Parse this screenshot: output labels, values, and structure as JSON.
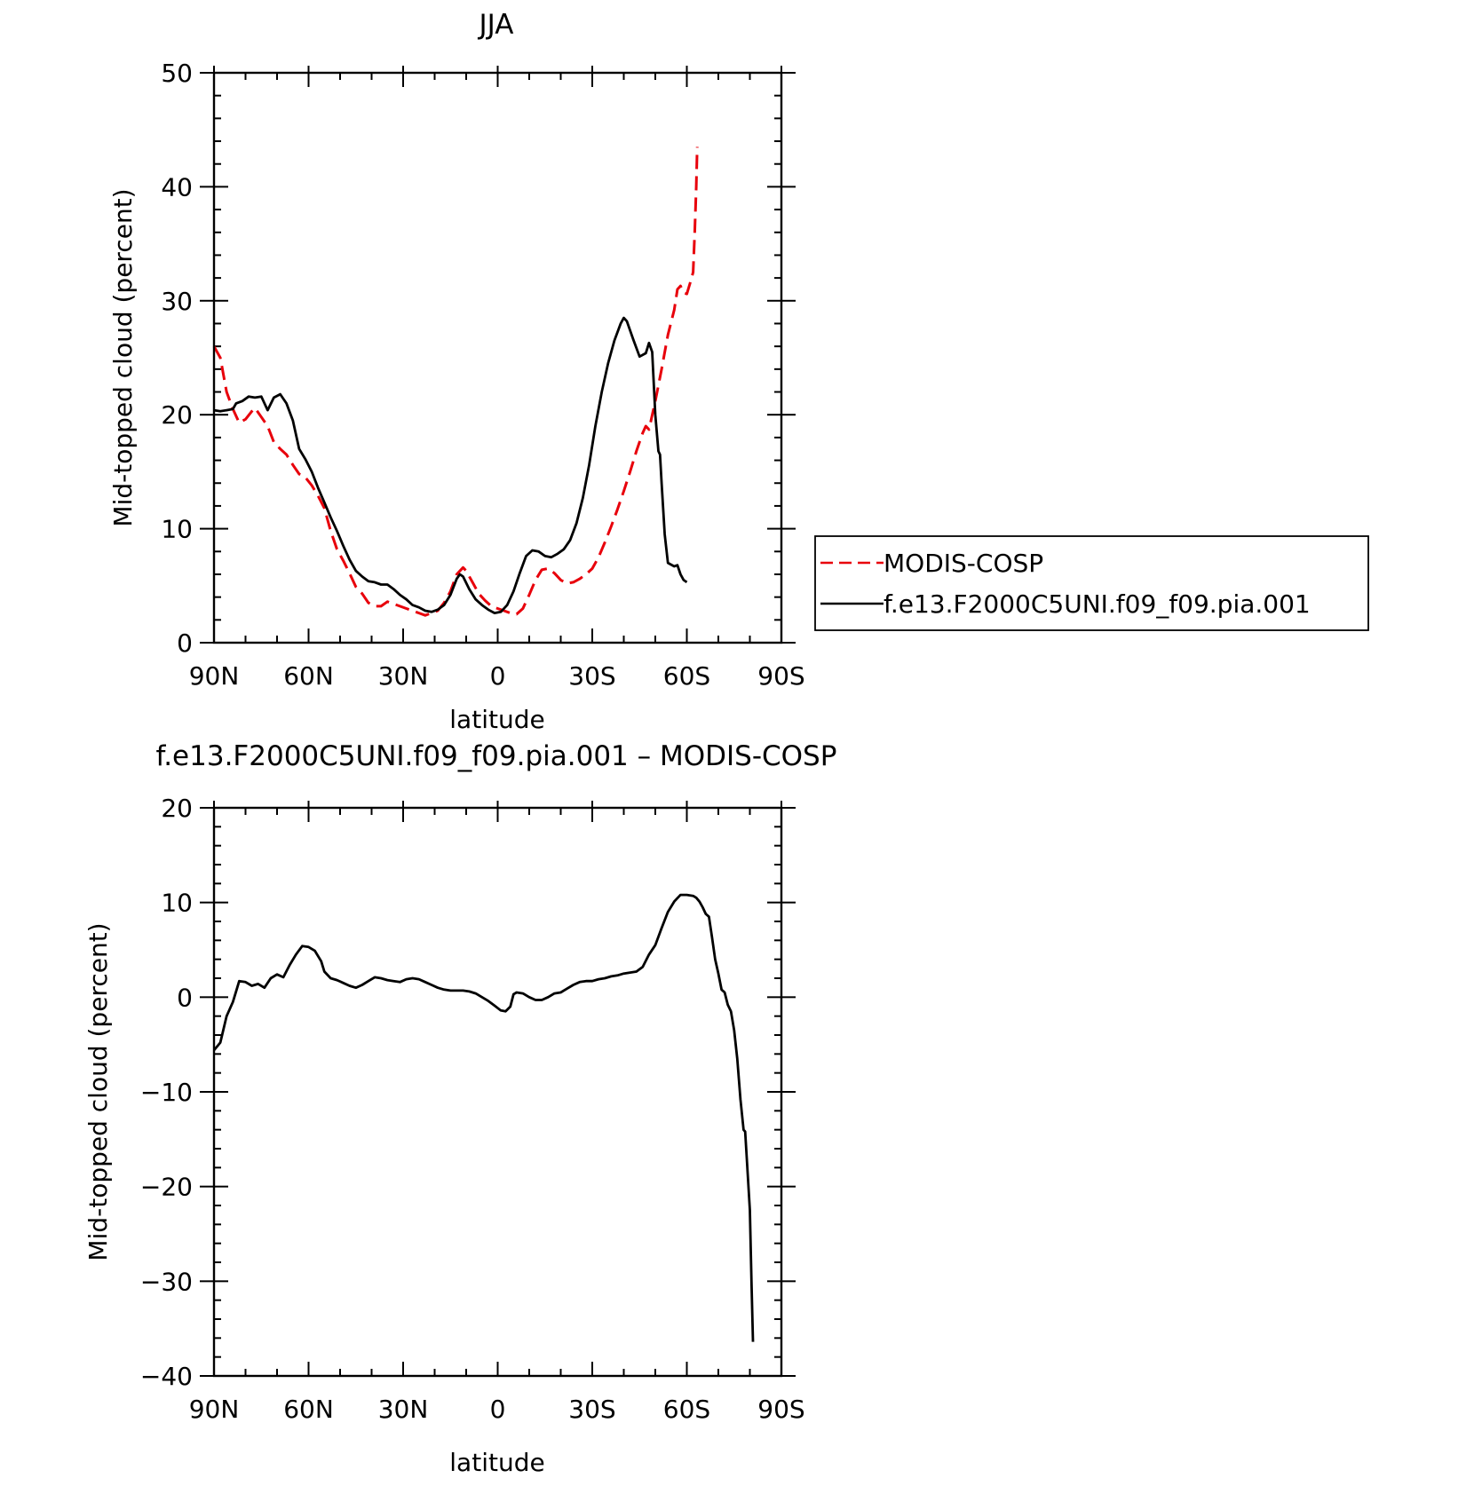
{
  "chart_data": [
    {
      "type": "line",
      "title": "JJA",
      "xlabel": "latitude",
      "ylabel": "Mid-topped cloud (percent)",
      "xlim": [
        90,
        -90
      ],
      "ylim": [
        0,
        50
      ],
      "x_ticks": [
        90,
        60,
        30,
        0,
        -30,
        -60,
        -90
      ],
      "x_tick_labels": [
        "90N",
        "60N",
        "30N",
        "0",
        "30S",
        "60S",
        "90S"
      ],
      "y_ticks": [
        0,
        10,
        20,
        30,
        40,
        50
      ],
      "y_tick_labels": [
        "0",
        "10",
        "20",
        "30",
        "40",
        "50"
      ],
      "legend_position": "right",
      "series": [
        {
          "name": "MODIS-COSP",
          "color": "#e8000b",
          "dash": "dashed",
          "points": [
            [
              90,
              26
            ],
            [
              88,
              25
            ],
            [
              86,
              22
            ],
            [
              84,
              20.5
            ],
            [
              82,
              19.3
            ],
            [
              80,
              19.6
            ],
            [
              78,
              20.3
            ],
            [
              77,
              20.6
            ],
            [
              75,
              19.8
            ],
            [
              73,
              19
            ],
            [
              71,
              17.6
            ],
            [
              69,
              17
            ],
            [
              67,
              16.5
            ],
            [
              65,
              15.6
            ],
            [
              63,
              14.8
            ],
            [
              61,
              14.5
            ],
            [
              59,
              13.8
            ],
            [
              57,
              12.9
            ],
            [
              55,
              11.8
            ],
            [
              53,
              9.8
            ],
            [
              51,
              8.2
            ],
            [
              49,
              7.2
            ],
            [
              47,
              6.1
            ],
            [
              45,
              4.9
            ],
            [
              43,
              4.3
            ],
            [
              41,
              3.5
            ],
            [
              39,
              3.2
            ],
            [
              37,
              3.2
            ],
            [
              35,
              3.6
            ],
            [
              33,
              3.4
            ],
            [
              31,
              3.2
            ],
            [
              29,
              3
            ],
            [
              27,
              2.8
            ],
            [
              25,
              2.6
            ],
            [
              23,
              2.4
            ],
            [
              21,
              2.6
            ],
            [
              19,
              2.8
            ],
            [
              17,
              3.5
            ],
            [
              15,
              4.5
            ],
            [
              13,
              6
            ],
            [
              11,
              6.6
            ],
            [
              10,
              6.3
            ],
            [
              8,
              5.3
            ],
            [
              6,
              4.3
            ],
            [
              4,
              3.7
            ],
            [
              2,
              3.2
            ],
            [
              0,
              3
            ],
            [
              -2,
              2.8
            ],
            [
              -4,
              2.6
            ],
            [
              -6,
              2.5
            ],
            [
              -8,
              3
            ],
            [
              -10,
              4.2
            ],
            [
              -12,
              5.5
            ],
            [
              -14,
              6.4
            ],
            [
              -16,
              6.5
            ],
            [
              -18,
              6.1
            ],
            [
              -20,
              5.5
            ],
            [
              -22,
              5.2
            ],
            [
              -24,
              5.3
            ],
            [
              -26,
              5.6
            ],
            [
              -28,
              6
            ],
            [
              -30,
              6.5
            ],
            [
              -32,
              7.5
            ],
            [
              -34,
              8.8
            ],
            [
              -36,
              10.2
            ],
            [
              -38,
              11.7
            ],
            [
              -40,
              13.3
            ],
            [
              -42,
              15
            ],
            [
              -44,
              16.8
            ],
            [
              -46,
              18.4
            ],
            [
              -47,
              19
            ],
            [
              -48,
              18.7
            ],
            [
              -50,
              21.2
            ],
            [
              -52,
              24
            ],
            [
              -54,
              27
            ],
            [
              -56,
              29.2
            ],
            [
              -57,
              31
            ],
            [
              -58,
              31.3
            ],
            [
              -59,
              30.7
            ],
            [
              -60,
              30.6
            ],
            [
              -61,
              31.5
            ],
            [
              -62,
              32.5
            ],
            [
              -62.5,
              36
            ],
            [
              -63,
              40
            ],
            [
              -63.3,
              43.5
            ]
          ]
        },
        {
          "name": "f.e13.F2000C5UNI.f09_f09.pia.001",
          "color": "#000000",
          "dash": "solid",
          "points": [
            [
              90,
              20.4
            ],
            [
              88,
              20.3
            ],
            [
              86,
              20.4
            ],
            [
              84,
              20.5
            ],
            [
              83,
              21
            ],
            [
              81,
              21.2
            ],
            [
              79,
              21.6
            ],
            [
              77,
              21.5
            ],
            [
              75,
              21.6
            ],
            [
              73,
              20.4
            ],
            [
              71,
              21.5
            ],
            [
              69,
              21.8
            ],
            [
              67,
              21
            ],
            [
              65,
              19.5
            ],
            [
              63,
              17
            ],
            [
              61,
              16.1
            ],
            [
              59,
              15
            ],
            [
              57,
              13.6
            ],
            [
              55,
              12.3
            ],
            [
              53,
              11
            ],
            [
              51,
              9.8
            ],
            [
              49,
              8.5
            ],
            [
              47,
              7.3
            ],
            [
              45,
              6.3
            ],
            [
              43,
              5.8
            ],
            [
              41,
              5.4
            ],
            [
              39,
              5.3
            ],
            [
              37,
              5.1
            ],
            [
              35,
              5.1
            ],
            [
              33,
              4.7
            ],
            [
              31,
              4.2
            ],
            [
              29,
              3.8
            ],
            [
              27,
              3.3
            ],
            [
              25,
              3.1
            ],
            [
              23,
              2.8
            ],
            [
              21,
              2.7
            ],
            [
              19,
              2.9
            ],
            [
              17,
              3.3
            ],
            [
              15,
              4.2
            ],
            [
              13,
              5.6
            ],
            [
              12,
              6
            ],
            [
              11,
              5.8
            ],
            [
              9,
              4.7
            ],
            [
              7,
              3.8
            ],
            [
              5,
              3.3
            ],
            [
              3,
              2.9
            ],
            [
              1,
              2.6
            ],
            [
              -1,
              2.7
            ],
            [
              -3,
              3.3
            ],
            [
              -5,
              4.5
            ],
            [
              -7,
              6.1
            ],
            [
              -9,
              7.6
            ],
            [
              -11,
              8.1
            ],
            [
              -13,
              8
            ],
            [
              -15,
              7.6
            ],
            [
              -17,
              7.5
            ],
            [
              -19,
              7.8
            ],
            [
              -21,
              8.2
            ],
            [
              -23,
              9
            ],
            [
              -25,
              10.5
            ],
            [
              -27,
              12.7
            ],
            [
              -29,
              15.6
            ],
            [
              -31,
              19
            ],
            [
              -33,
              22
            ],
            [
              -35,
              24.5
            ],
            [
              -37,
              26.5
            ],
            [
              -39,
              28
            ],
            [
              -40,
              28.5
            ],
            [
              -41,
              28.2
            ],
            [
              -43,
              26.6
            ],
            [
              -45,
              25.1
            ],
            [
              -47,
              25.4
            ],
            [
              -48,
              26.3
            ],
            [
              -49,
              25.5
            ],
            [
              -50,
              20
            ],
            [
              -51,
              16.8
            ],
            [
              -51.5,
              16.5
            ],
            [
              -52,
              14
            ],
            [
              -53,
              9.5
            ],
            [
              -54,
              7
            ],
            [
              -56,
              6.7
            ],
            [
              -57,
              6.8
            ],
            [
              -58,
              6
            ],
            [
              -59,
              5.5
            ],
            [
              -60,
              5.3
            ]
          ]
        }
      ]
    },
    {
      "type": "line",
      "title": "f.e13.F2000C5UNI.f09_f09.pia.001 – MODIS-COSP",
      "xlabel": "latitude",
      "ylabel": "Mid-topped cloud (percent)",
      "xlim": [
        90,
        -90
      ],
      "ylim": [
        -40,
        20
      ],
      "x_ticks": [
        90,
        60,
        30,
        0,
        -30,
        -60,
        -90
      ],
      "x_tick_labels": [
        "90N",
        "60N",
        "30N",
        "0",
        "30S",
        "60S",
        "90S"
      ],
      "y_ticks": [
        -40,
        -30,
        -20,
        -10,
        0,
        10,
        20
      ],
      "y_tick_labels": [
        "−40",
        "−30",
        "−20",
        "−10",
        "0",
        "10",
        "20"
      ],
      "series": [
        {
          "color": "#000000",
          "dash": "solid",
          "points": [
            [
              90,
              -5.6
            ],
            [
              88,
              -4.8
            ],
            [
              86,
              -2
            ],
            [
              84,
              -0.5
            ],
            [
              82,
              1.7
            ],
            [
              80,
              1.6
            ],
            [
              78,
              1.2
            ],
            [
              76,
              1.4
            ],
            [
              74,
              1
            ],
            [
              72,
              2
            ],
            [
              70,
              2.4
            ],
            [
              68,
              2.1
            ],
            [
              66,
              3.4
            ],
            [
              64,
              4.5
            ],
            [
              62,
              5.4
            ],
            [
              60,
              5.3
            ],
            [
              58,
              4.9
            ],
            [
              56,
              3.8
            ],
            [
              55,
              2.7
            ],
            [
              53,
              2
            ],
            [
              51,
              1.8
            ],
            [
              49,
              1.5
            ],
            [
              47,
              1.2
            ],
            [
              45,
              1
            ],
            [
              43,
              1.3
            ],
            [
              41,
              1.7
            ],
            [
              39,
              2.1
            ],
            [
              37,
              2
            ],
            [
              35,
              1.8
            ],
            [
              33,
              1.7
            ],
            [
              31,
              1.6
            ],
            [
              29,
              1.9
            ],
            [
              27,
              2
            ],
            [
              25,
              1.9
            ],
            [
              23,
              1.6
            ],
            [
              21,
              1.3
            ],
            [
              19,
              1
            ],
            [
              17,
              0.8
            ],
            [
              15,
              0.7
            ],
            [
              13,
              0.7
            ],
            [
              11,
              0.7
            ],
            [
              9,
              0.6
            ],
            [
              7,
              0.4
            ],
            [
              5,
              0
            ],
            [
              3,
              -0.4
            ],
            [
              1,
              -0.9
            ],
            [
              -1,
              -1.4
            ],
            [
              -2.5,
              -1.5
            ],
            [
              -4,
              -1
            ],
            [
              -5,
              0.3
            ],
            [
              -6,
              0.5
            ],
            [
              -8,
              0.4
            ],
            [
              -10,
              0
            ],
            [
              -12,
              -0.3
            ],
            [
              -14,
              -0.3
            ],
            [
              -16,
              0
            ],
            [
              -18,
              0.4
            ],
            [
              -20,
              0.5
            ],
            [
              -22,
              0.9
            ],
            [
              -24,
              1.3
            ],
            [
              -26,
              1.6
            ],
            [
              -28,
              1.7
            ],
            [
              -30,
              1.7
            ],
            [
              -32,
              1.9
            ],
            [
              -34,
              2
            ],
            [
              -36,
              2.2
            ],
            [
              -38,
              2.3
            ],
            [
              -40,
              2.5
            ],
            [
              -42,
              2.6
            ],
            [
              -44,
              2.7
            ],
            [
              -46,
              3.2
            ],
            [
              -48,
              4.5
            ],
            [
              -50,
              5.5
            ],
            [
              -52,
              7.3
            ],
            [
              -54,
              9
            ],
            [
              -56,
              10.1
            ],
            [
              -58,
              10.8
            ],
            [
              -60,
              10.8
            ],
            [
              -62,
              10.7
            ],
            [
              -63,
              10.5
            ],
            [
              -64,
              10.1
            ],
            [
              -65,
              9.5
            ],
            [
              -66,
              8.8
            ],
            [
              -67,
              8.5
            ],
            [
              -68,
              6.3
            ],
            [
              -69,
              4
            ],
            [
              -70,
              2.5
            ],
            [
              -71,
              0.8
            ],
            [
              -72,
              0.5
            ],
            [
              -73,
              -0.8
            ],
            [
              -74,
              -1.5
            ],
            [
              -75,
              -3.5
            ],
            [
              -76,
              -6.5
            ],
            [
              -77,
              -10.8
            ],
            [
              -78,
              -14
            ],
            [
              -78.5,
              -14.2
            ],
            [
              -79,
              -17
            ],
            [
              -80,
              -22.5
            ],
            [
              -80.5,
              -30
            ],
            [
              -81,
              -36.4
            ]
          ]
        }
      ]
    }
  ]
}
